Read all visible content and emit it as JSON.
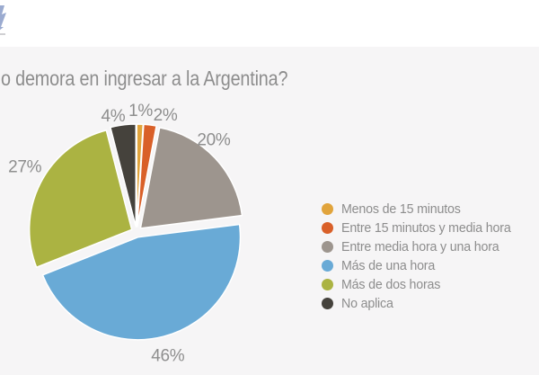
{
  "header": {
    "logo_icon": "partial-logo-mark"
  },
  "title": "o demora en ingresar a la Argentina?",
  "chart_data": {
    "type": "pie",
    "title": "o demora en ingresar a la Argentina?",
    "start_angle_deg": 0,
    "direction": "clockwise",
    "legend_position": "right",
    "slices": [
      {
        "label": "Menos de 15 minutos",
        "value": 1,
        "display": "1%",
        "color": "#e1a43c"
      },
      {
        "label": "Entre 15 minutos y media hora",
        "value": 2,
        "display": "2%",
        "color": "#d96029"
      },
      {
        "label": "Entre media hora y una hora",
        "value": 20,
        "display": "20%",
        "color": "#9d958e"
      },
      {
        "label": "Más de una hora",
        "value": 46,
        "display": "46%",
        "color": "#69aad6"
      },
      {
        "label": "Más de dos horas",
        "value": 27,
        "display": "27%",
        "color": "#abb342"
      },
      {
        "label": "No aplica",
        "value": 4,
        "display": "4%",
        "color": "#45423c"
      }
    ]
  }
}
